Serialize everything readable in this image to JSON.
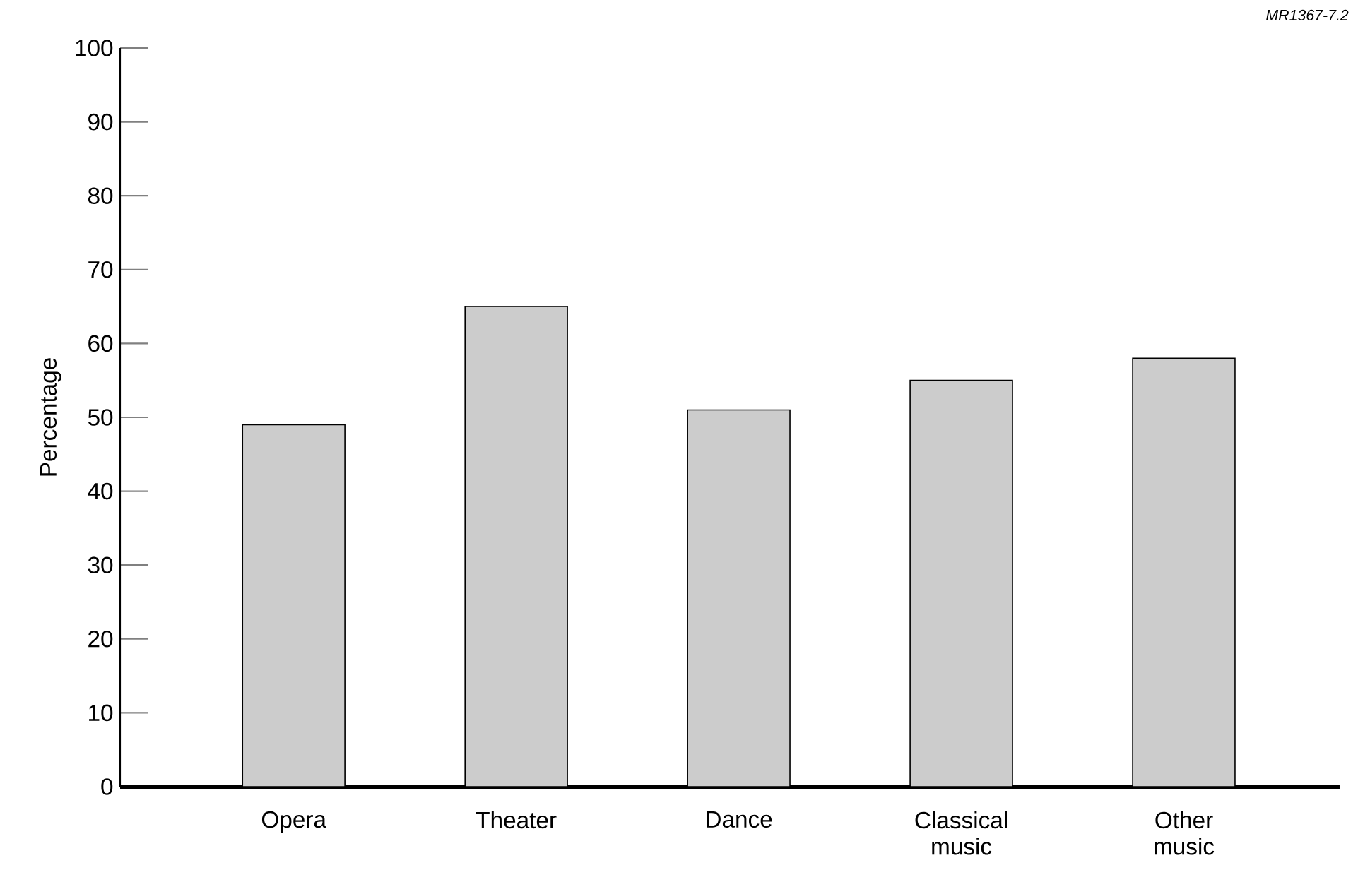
{
  "chart_data": {
    "type": "bar",
    "ylabel": "Percentage",
    "annotations": [
      "*MR1367-7.2*"
    ],
    "categories": [
      "Opera",
      "Theater",
      "Dance",
      "Classical music",
      "Other music"
    ],
    "values": [
      49,
      65,
      51,
      55,
      58
    ],
    "color": "#cccccc",
    "ylim": [
      0,
      100
    ],
    "yticks": [
      0,
      10,
      20,
      30,
      40,
      50,
      60,
      70,
      80,
      90,
      100
    ],
    "grid": false
  }
}
